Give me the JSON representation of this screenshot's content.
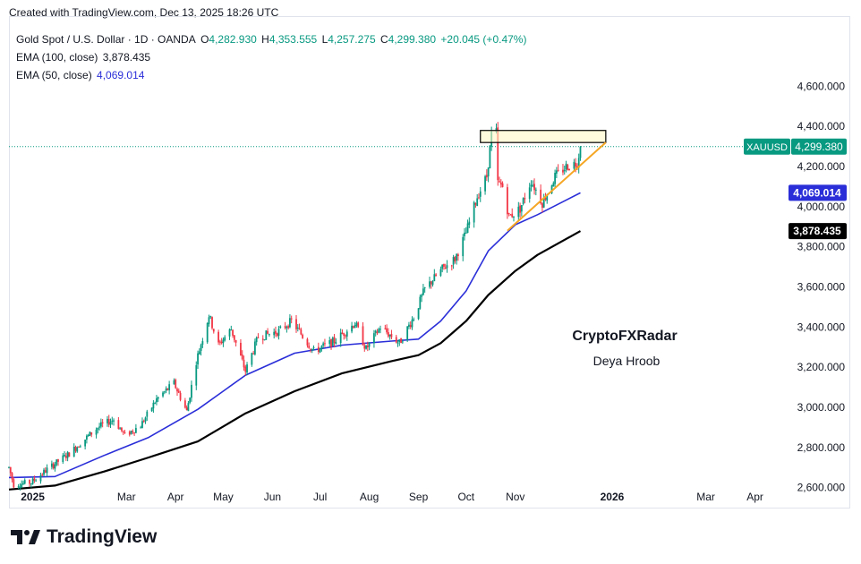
{
  "created_line": "Created with TradingView.com, Dec 13, 2025 18:26 UTC",
  "legend": {
    "title": "Gold Spot / U.S. Dollar · 1D · OANDA",
    "ohlc": {
      "o_label": "O",
      "o": "4,282.930",
      "h_label": "H",
      "h": "4,353.555",
      "l_label": "L",
      "l": "4,257.275",
      "c_label": "C",
      "c": "4,299.380",
      "change": "+20.045 (+0.47%)"
    },
    "ema100": {
      "label": "EMA (100, close)",
      "value": "3,878.435"
    },
    "ema50": {
      "label": "EMA (50, close)",
      "value": "4,069.014"
    }
  },
  "watermark": {
    "line1": "CryptoFXRadar",
    "line2": "Deya Hroob"
  },
  "brand": "TradingView",
  "price_tags": {
    "symbol": "XAUUSD",
    "last": "4,299.380",
    "ema50": "4,069.014",
    "ema100": "3,878.435"
  },
  "colors": {
    "up": "#089981",
    "down": "#f23645",
    "ema50": "#2a2ed8",
    "ema100": "#000000",
    "trendline": "#f5a623",
    "box_fill": "#fff9c4",
    "last_tag": "#089981"
  },
  "chart_data": {
    "type": "candlestick",
    "y_axis": {
      "range": [
        2500,
        4950
      ],
      "ticks": [
        2600,
        2800,
        3000,
        3200,
        3400,
        3600,
        3800,
        4000,
        4200,
        4400,
        4600
      ],
      "tick_labels": [
        "2,600.000",
        "2,800.000",
        "3,000.000",
        "3,200.000",
        "3,400.000",
        "3,600.000",
        "3,800.000",
        "4,000.000",
        "4,200.000",
        "4,400.000",
        "4,600.000"
      ]
    },
    "x_axis": {
      "range": [
        "2024-12-17",
        "2026-04-30"
      ],
      "ticks": [
        {
          "date": "2025-01-01",
          "label": "2025"
        },
        {
          "date": "2025-03-01",
          "label": "Mar"
        },
        {
          "date": "2025-04-01",
          "label": "Apr"
        },
        {
          "date": "2025-05-01",
          "label": "May"
        },
        {
          "date": "2025-06-01",
          "label": "Jun"
        },
        {
          "date": "2025-07-01",
          "label": "Jul"
        },
        {
          "date": "2025-08-01",
          "label": "Aug"
        },
        {
          "date": "2025-09-01",
          "label": "Sep"
        },
        {
          "date": "2025-10-01",
          "label": "Oct"
        },
        {
          "date": "2025-11-01",
          "label": "Nov"
        },
        {
          "date": "2026-01-01",
          "label": "2026"
        },
        {
          "date": "2026-03-01",
          "label": "Mar"
        },
        {
          "date": "2026-04-01",
          "label": "Apr"
        }
      ]
    },
    "price_path": [
      [
        "2024-12-17",
        2700
      ],
      [
        "2024-12-20",
        2615
      ],
      [
        "2024-12-31",
        2625
      ],
      [
        "2025-01-10",
        2690
      ],
      [
        "2025-01-24",
        2770
      ],
      [
        "2025-02-11",
        2900
      ],
      [
        "2025-02-21",
        2940
      ],
      [
        "2025-02-28",
        2860
      ],
      [
        "2025-03-10",
        2910
      ],
      [
        "2025-03-20",
        3040
      ],
      [
        "2025-03-31",
        3120
      ],
      [
        "2025-04-08",
        2980
      ],
      [
        "2025-04-14",
        3230
      ],
      [
        "2025-04-22",
        3460
      ],
      [
        "2025-04-28",
        3310
      ],
      [
        "2025-05-06",
        3390
      ],
      [
        "2025-05-15",
        3180
      ],
      [
        "2025-05-23",
        3350
      ],
      [
        "2025-06-05",
        3380
      ],
      [
        "2025-06-13",
        3430
      ],
      [
        "2025-06-27",
        3280
      ],
      [
        "2025-07-10",
        3330
      ],
      [
        "2025-07-23",
        3420
      ],
      [
        "2025-07-30",
        3290
      ],
      [
        "2025-08-08",
        3400
      ],
      [
        "2025-08-20",
        3320
      ],
      [
        "2025-08-29",
        3450
      ],
      [
        "2025-09-05",
        3590
      ],
      [
        "2025-09-16",
        3690
      ],
      [
        "2025-09-24",
        3740
      ],
      [
        "2025-10-01",
        3870
      ],
      [
        "2025-10-08",
        4050
      ],
      [
        "2025-10-14",
        4150
      ],
      [
        "2025-10-17",
        4360
      ],
      [
        "2025-10-20",
        4370
      ],
      [
        "2025-10-21",
        4120
      ],
      [
        "2025-10-24",
        4100
      ],
      [
        "2025-10-28",
        3950
      ],
      [
        "2025-11-04",
        3990
      ],
      [
        "2025-11-11",
        4130
      ],
      [
        "2025-11-18",
        4020
      ],
      [
        "2025-11-26",
        4150
      ],
      [
        "2025-12-03",
        4200
      ],
      [
        "2025-12-10",
        4220
      ],
      [
        "2025-12-12",
        4299.38
      ]
    ],
    "ema50_series": [
      [
        "2024-12-17",
        2650
      ],
      [
        "2025-01-15",
        2655
      ],
      [
        "2025-02-15",
        2760
      ],
      [
        "2025-03-15",
        2850
      ],
      [
        "2025-04-15",
        2990
      ],
      [
        "2025-05-15",
        3160
      ],
      [
        "2025-06-15",
        3270
      ],
      [
        "2025-07-15",
        3310
      ],
      [
        "2025-08-15",
        3330
      ],
      [
        "2025-09-01",
        3340
      ],
      [
        "2025-09-15",
        3430
      ],
      [
        "2025-10-01",
        3580
      ],
      [
        "2025-10-15",
        3780
      ],
      [
        "2025-11-01",
        3910
      ],
      [
        "2025-11-15",
        3960
      ],
      [
        "2025-12-12",
        4069.014
      ]
    ],
    "ema100_series": [
      [
        "2024-12-17",
        2590
      ],
      [
        "2025-01-15",
        2610
      ],
      [
        "2025-02-15",
        2680
      ],
      [
        "2025-03-15",
        2750
      ],
      [
        "2025-04-15",
        2830
      ],
      [
        "2025-05-15",
        2970
      ],
      [
        "2025-06-15",
        3080
      ],
      [
        "2025-07-15",
        3170
      ],
      [
        "2025-08-15",
        3230
      ],
      [
        "2025-09-01",
        3260
      ],
      [
        "2025-09-15",
        3320
      ],
      [
        "2025-10-01",
        3430
      ],
      [
        "2025-10-15",
        3560
      ],
      [
        "2025-11-01",
        3680
      ],
      [
        "2025-11-15",
        3760
      ],
      [
        "2025-12-12",
        3878.435
      ]
    ],
    "trendline": [
      [
        "2025-10-27",
        3880
      ],
      [
        "2025-12-28",
        4320
      ]
    ],
    "resistance_box": {
      "x": [
        "2025-10-10",
        "2025-12-28"
      ],
      "y": [
        4320,
        4380
      ]
    },
    "last_price": 4299.38
  }
}
